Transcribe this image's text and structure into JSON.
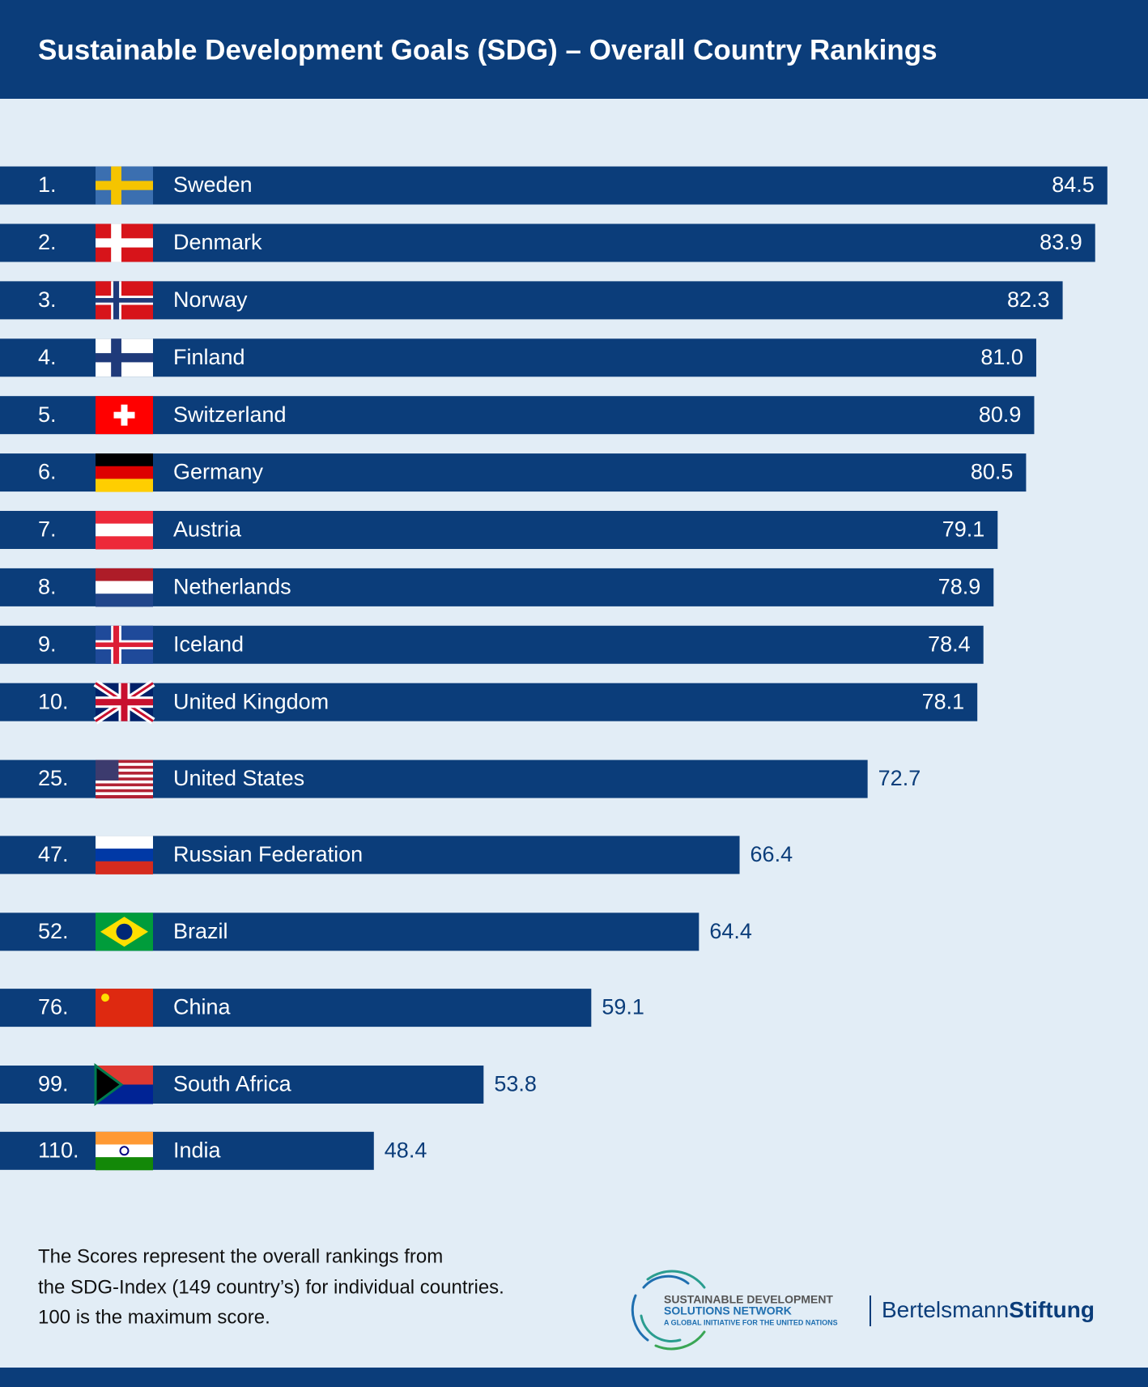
{
  "chart_data": {
    "type": "bar",
    "orientation": "horizontal",
    "title": "Sustainable Development Goals (SDG) – Overall Country Rankings",
    "ranks": [
      "1.",
      "2.",
      "3.",
      "4.",
      "5.",
      "6.",
      "7.",
      "8.",
      "9.",
      "10.",
      "25.",
      "47.",
      "52.",
      "76.",
      "99.",
      "110."
    ],
    "categories": [
      "Sweden",
      "Denmark",
      "Norway",
      "Finland",
      "Switzerland",
      "Germany",
      "Austria",
      "Netherlands",
      "Iceland",
      "United Kingdom",
      "United States",
      "Russian Federation",
      "Brazil",
      "China",
      "South Africa",
      "India"
    ],
    "values": [
      84.5,
      83.9,
      82.3,
      81.0,
      80.9,
      80.5,
      79.1,
      78.9,
      78.4,
      78.1,
      72.7,
      66.4,
      64.4,
      59.1,
      53.8,
      48.4
    ],
    "value_labels": [
      "84.5",
      "83.9",
      "82.3",
      "81.0",
      "80.9",
      "80.5",
      "79.1",
      "78.9",
      "78.4",
      "78.1",
      "72.7",
      "66.4",
      "64.4",
      "59.1",
      "53.8",
      "48.4"
    ],
    "color": "#0b3d7a",
    "xlim": [
      30,
      86.5
    ],
    "note": [
      "The Scores represent the overall rankings from",
      "the SDG-Index (149 country’s) for individual countries.",
      "100 is the maximum score."
    ],
    "logos": {
      "sdsn": [
        "SUSTAINABLE DEVELOPMENT",
        "SOLUTIONS NETWORK",
        "A GLOBAL INITIATIVE FOR THE UNITED NATIONS"
      ],
      "bertelsmann": [
        "Bertelsmann",
        "Stiftung"
      ]
    }
  }
}
